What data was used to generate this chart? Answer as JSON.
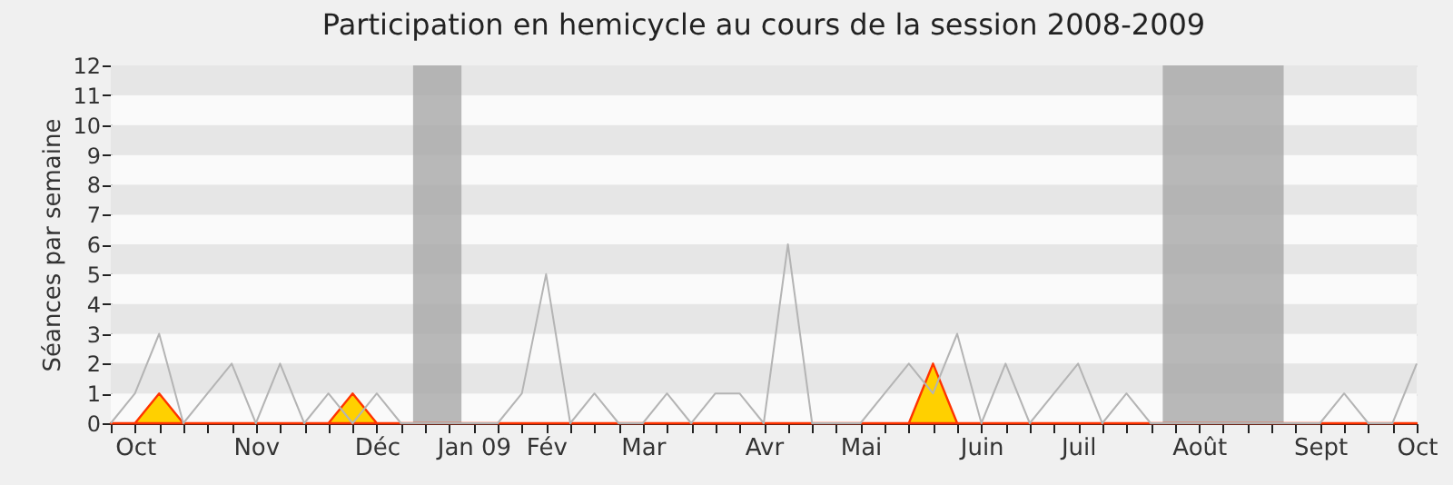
{
  "chart_data": {
    "type": "line",
    "title": "Participation en hemicycle au cours de la session 2008-2009",
    "ylabel": "Séances par semaine",
    "categories": [
      null,
      "Oct",
      null,
      null,
      null,
      null,
      "Nov",
      null,
      null,
      null,
      null,
      "Déc",
      null,
      null,
      null,
      "Jan 09",
      null,
      null,
      "Fév",
      null,
      null,
      null,
      "Mar",
      null,
      null,
      null,
      null,
      "Avr",
      null,
      null,
      null,
      "Mai",
      null,
      null,
      null,
      null,
      "Juin",
      null,
      null,
      null,
      "Juil",
      null,
      null,
      null,
      null,
      "Août",
      null,
      null,
      null,
      null,
      "Sept",
      null,
      null,
      null,
      "Oct"
    ],
    "series": [
      {
        "type": "line",
        "color": "#b4b4b4",
        "values": [
          0,
          1,
          3,
          0,
          1,
          2,
          0,
          2,
          0,
          1,
          0,
          1,
          0,
          0,
          0,
          0,
          0,
          1,
          5,
          0,
          1,
          0,
          0,
          1,
          0,
          1,
          1,
          0,
          6,
          0,
          0,
          0,
          1,
          2,
          1,
          3,
          0,
          2,
          0,
          1,
          2,
          0,
          1,
          0,
          0,
          0,
          0,
          0,
          0,
          0,
          0,
          1,
          0,
          0,
          2
        ]
      },
      {
        "type": "area",
        "color": "#ffd000",
        "values": [
          0,
          0,
          1,
          0,
          0,
          0,
          0,
          0,
          0,
          0,
          1,
          0,
          0,
          0,
          0,
          0,
          0,
          0,
          0,
          0,
          0,
          0,
          0,
          0,
          0,
          0,
          0,
          0,
          0,
          0,
          0,
          0,
          0,
          0,
          2,
          0,
          0,
          0,
          0,
          0,
          0,
          0,
          0,
          0,
          0,
          0,
          0,
          0,
          0,
          0,
          0,
          0,
          0,
          0,
          0
        ]
      }
    ],
    "ylim": [
      0,
      12
    ],
    "yticks": [
      0,
      1,
      2,
      3,
      4,
      5,
      6,
      7,
      8,
      9,
      10,
      11,
      12
    ],
    "grid": "y"
  }
}
